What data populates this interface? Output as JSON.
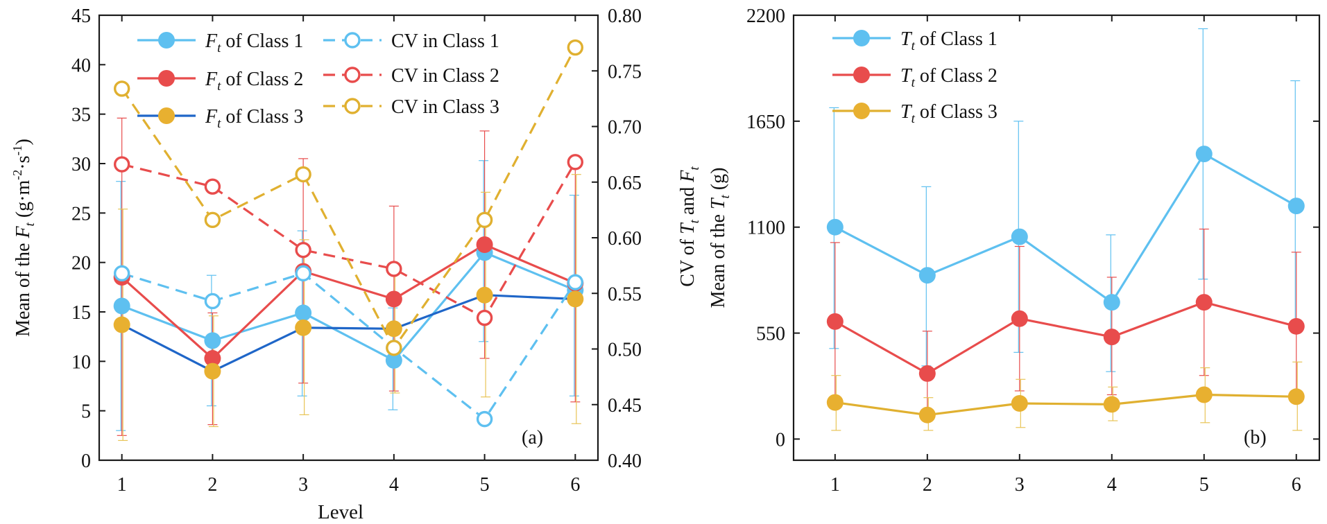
{
  "colors": {
    "class1": "#5ec0f0",
    "class2": "#e84c4c",
    "class3_mean": "#1f66c8",
    "class3_marker": "#e8b030",
    "cv3": "#e0b030",
    "errbar3": "#e8c456"
  },
  "chart_data": [
    {
      "type": "line",
      "panel_label": "(a)",
      "xlabel": "Level",
      "ylabel": {
        "prefix": "Mean of the ",
        "var": "F",
        "sub": "t",
        "units": " (g·m",
        "exp1": "-2",
        "mid": "·s",
        "exp2": "-1",
        "close": ")"
      },
      "y2label": {
        "prefix": "CV of ",
        "var1": "T",
        "sub1": "t",
        "mid": " and ",
        "var2": "F",
        "sub2": "t"
      },
      "x": [
        1,
        2,
        3,
        4,
        5,
        6
      ],
      "xlim": [
        0.75,
        6.25
      ],
      "ylim": [
        0,
        45
      ],
      "y2lim": [
        0.4,
        0.8
      ],
      "xticks": [
        "1",
        "2",
        "3",
        "4",
        "5",
        "6"
      ],
      "yticks": [
        "0",
        "5",
        "10",
        "15",
        "20",
        "25",
        "30",
        "35",
        "40",
        "45"
      ],
      "y2ticks": [
        "0.40",
        "0.45",
        "0.50",
        "0.55",
        "0.60",
        "0.65",
        "0.70",
        "0.75",
        "0.80"
      ],
      "series": [
        {
          "name": "F_t of Class 1",
          "legend": {
            "var": "F",
            "sub": "t",
            "text": " of Class 1"
          },
          "axis": "left",
          "style": "solid",
          "marker": "filled",
          "line_color": "#5ec0f0",
          "marker_color": "#5ec0f0",
          "err_color": "#5ec0f0",
          "values": [
            15.6,
            12.1,
            14.9,
            10.1,
            21.0,
            17.2
          ],
          "err_low": [
            3.0,
            5.5,
            6.5,
            5.1,
            12.0,
            6.5
          ],
          "err_high": [
            28.2,
            18.7,
            23.2,
            15.4,
            30.3,
            26.8
          ]
        },
        {
          "name": "F_t of Class 2",
          "legend": {
            "var": "F",
            "sub": "t",
            "text": " of Class 2"
          },
          "axis": "left",
          "style": "solid",
          "marker": "filled",
          "line_color": "#e84c4c",
          "marker_color": "#e84c4c",
          "err_color": "#e84c4c",
          "values": [
            18.5,
            10.3,
            19.1,
            16.3,
            21.8,
            17.9
          ],
          "err_low": [
            2.5,
            3.6,
            7.8,
            7.0,
            10.3,
            5.9
          ],
          "err_high": [
            34.6,
            14.9,
            30.5,
            25.7,
            33.3,
            29.9
          ]
        },
        {
          "name": "F_t of Class 3",
          "legend": {
            "var": "F",
            "sub": "t",
            "text": "  of Class 3"
          },
          "axis": "left",
          "style": "solid",
          "marker": "filled",
          "line_color": "#1f66c8",
          "marker_color": "#e8b030",
          "err_color": "#e8c456",
          "values": [
            13.7,
            9.0,
            13.4,
            13.3,
            16.7,
            16.3
          ],
          "marker_values": [
            13.7,
            9.0,
            13.4,
            13.3,
            16.7,
            16.3
          ],
          "err_low": [
            2.0,
            3.4,
            4.6,
            6.8,
            6.4,
            3.7
          ],
          "err_high": [
            25.4,
            14.6,
            22.3,
            19.8,
            27.1,
            28.9
          ]
        },
        {
          "name": "CV in Class 1",
          "legend": {
            "text": "CV in Class 1"
          },
          "axis": "right",
          "style": "dashed",
          "marker": "hollow",
          "line_color": "#5ec0f0",
          "marker_color": "#5ec0f0",
          "values": [
            0.568,
            0.543,
            0.568,
            0.501,
            0.437,
            0.56
          ]
        },
        {
          "name": "CV in Class 2",
          "legend": {
            "text": "CV in Class 2"
          },
          "axis": "right",
          "style": "dashed",
          "marker": "hollow",
          "line_color": "#e84c4c",
          "marker_color": "#e84c4c",
          "values": [
            0.666,
            0.646,
            0.589,
            0.572,
            0.528,
            0.668
          ]
        },
        {
          "name": "CV in Class 3",
          "legend": {
            "text": "CV in Class 3"
          },
          "axis": "right",
          "style": "dashed",
          "marker": "hollow",
          "line_color": "#e0b030",
          "marker_color": "#e0b030",
          "values": [
            0.734,
            0.616,
            0.657,
            0.501,
            0.616,
            0.771
          ]
        }
      ]
    },
    {
      "type": "line",
      "panel_label": "(b)",
      "xlabel": "",
      "ylabel": {
        "prefix": "Mean of the ",
        "var": "T",
        "sub": "t",
        "units": " (g)"
      },
      "x": [
        1,
        2,
        3,
        4,
        5,
        6
      ],
      "xlim": [
        0.55,
        6.25
      ],
      "ylim": [
        -110,
        2200
      ],
      "xticks": [
        "1",
        "2",
        "3",
        "4",
        "5",
        "6"
      ],
      "yticks": [
        "0",
        "550",
        "1100",
        "1650",
        "2200"
      ],
      "series": [
        {
          "name": "T_t of Class 1",
          "legend": {
            "var": "T",
            "sub": "t",
            "text": " of Class 1"
          },
          "style": "solid",
          "marker": "filled",
          "line_color": "#5ec0f0",
          "marker_color": "#5ec0f0",
          "err_color": "#5ec0f0",
          "values": [
            1100,
            850,
            1050,
            710,
            1480,
            1210
          ],
          "err_low": [
            470,
            380,
            450,
            350,
            830,
            560
          ],
          "err_high": [
            1720,
            1310,
            1650,
            1060,
            2130,
            1860
          ]
        },
        {
          "name": "T_t of Class 2",
          "legend": {
            "var": "T",
            "sub": "t",
            "text": " of Class 2"
          },
          "style": "solid",
          "marker": "filled",
          "line_color": "#e84c4c",
          "marker_color": "#e84c4c",
          "err_color": "#e84c4c",
          "values": [
            610,
            340,
            625,
            530,
            710,
            585
          ],
          "err_low": [
            190,
            110,
            250,
            230,
            330,
            210
          ],
          "err_high": [
            1020,
            560,
            1000,
            840,
            1090,
            970
          ]
        },
        {
          "name": "T_t of Class 3",
          "legend": {
            "var": "T",
            "sub": "t",
            "text": " of Class 3"
          },
          "style": "solid",
          "marker": "filled",
          "line_color": "#e0b030",
          "marker_color": "#e8b030",
          "err_color": "#e8c456",
          "values": [
            190,
            125,
            185,
            180,
            230,
            220
          ],
          "err_low": [
            45,
            45,
            60,
            95,
            85,
            45
          ],
          "err_high": [
            330,
            215,
            310,
            270,
            370,
            400
          ]
        }
      ]
    }
  ]
}
